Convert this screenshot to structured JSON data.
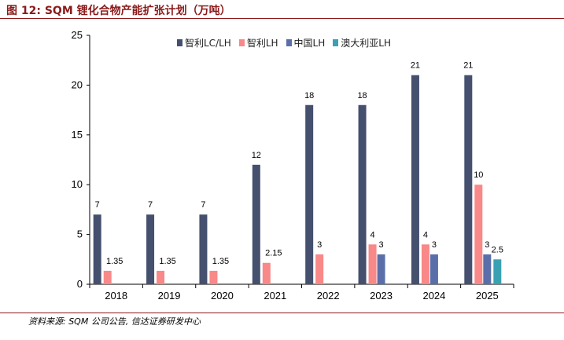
{
  "header": {
    "title": "图 12:  SQM 锂化合物产能扩张计划（万吨）"
  },
  "footer": {
    "source": "资料来源: SQM 公司公告, 信达证券研发中心"
  },
  "chart_data": {
    "type": "bar",
    "title": "SQM 锂化合物产能扩张计划（万吨）",
    "xlabel": "",
    "ylabel": "",
    "ylim": [
      0,
      25
    ],
    "yticks": [
      0,
      5,
      10,
      15,
      20,
      25
    ],
    "grid": false,
    "legend_position": "top",
    "categories": [
      "2018",
      "2019",
      "2020",
      "2021",
      "2022",
      "2023",
      "2024",
      "2025"
    ],
    "series": [
      {
        "name": "智利LC/LH",
        "color": "#44506e",
        "values": [
          7,
          7,
          7,
          12,
          18,
          18,
          21,
          21
        ],
        "labels": [
          "7",
          "7",
          "7",
          "12",
          "18",
          "18",
          "21",
          "21"
        ]
      },
      {
        "name": "智利LH",
        "color": "#f98888",
        "values": [
          1.35,
          1.35,
          1.35,
          2.15,
          3,
          4,
          4,
          10
        ],
        "labels": [
          "1.35",
          "1.35",
          "1.35",
          "2.15",
          "3",
          "4",
          "4",
          "10"
        ]
      },
      {
        "name": "中国LH",
        "color": "#5a6faa",
        "values": [
          null,
          null,
          null,
          null,
          null,
          3,
          3,
          3
        ],
        "labels": [
          null,
          null,
          null,
          null,
          null,
          "3",
          "3",
          "3"
        ]
      },
      {
        "name": "澳大利亚LH",
        "color": "#3aa1b3",
        "values": [
          null,
          null,
          null,
          null,
          null,
          null,
          null,
          2.5
        ],
        "labels": [
          null,
          null,
          null,
          null,
          null,
          null,
          null,
          "2.5"
        ]
      }
    ]
  }
}
